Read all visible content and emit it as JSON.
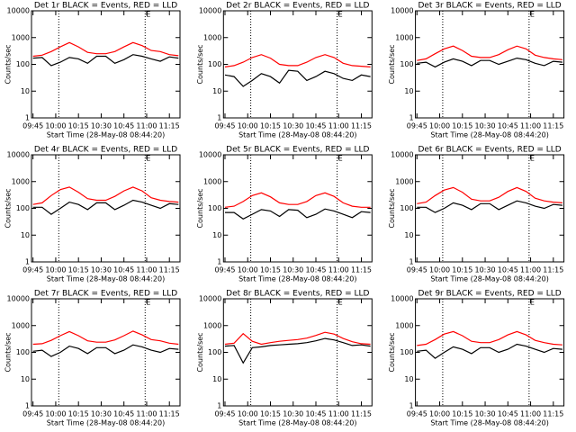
{
  "chart_data": [
    {
      "type": "line",
      "title": "Det 1r BLACK = Events, RED = LLD",
      "xlabel": "Start Time (28-May-08 08:44:20)",
      "ylabel": "Counts/sec",
      "x": [
        "09:45",
        "09:51",
        "09:57",
        "10:03",
        "10:09",
        "10:15",
        "10:21",
        "10:27",
        "10:33",
        "10:39",
        "10:45",
        "10:51",
        "10:57",
        "11:03",
        "11:09",
        "11:15",
        "11:21"
      ],
      "xlim": [
        "09:44",
        "11:22"
      ],
      "xticks": [
        "09:45",
        "10:00",
        "10:15",
        "10:30",
        "10:45",
        "11:00",
        "11:15"
      ],
      "ylim": [
        1,
        10000
      ],
      "yticks": [
        1,
        10,
        100,
        1000,
        10000
      ],
      "log_y": true,
      "vlines": [
        "10:02",
        "10:59"
      ],
      "annotations": [
        {
          "x": "10:59",
          "text": "E"
        }
      ],
      "series": [
        {
          "name": "Events",
          "color": "#000000",
          "values": [
            170,
            180,
            90,
            120,
            180,
            160,
            110,
            200,
            200,
            110,
            150,
            230,
            200,
            160,
            130,
            190,
            170
          ]
        },
        {
          "name": "LLD",
          "color": "#ff0000",
          "values": [
            200,
            220,
            300,
            450,
            650,
            450,
            280,
            250,
            250,
            300,
            450,
            650,
            500,
            330,
            300,
            230,
            210
          ]
        }
      ]
    },
    {
      "type": "line",
      "title": "Det 2r BLACK = Events, RED = LLD",
      "xlabel": "Start Time (28-May-08 08:44:20)",
      "ylabel": "Counts/sec",
      "x": [
        "09:45",
        "09:51",
        "09:57",
        "10:03",
        "10:09",
        "10:15",
        "10:21",
        "10:27",
        "10:33",
        "10:39",
        "10:45",
        "10:51",
        "10:57",
        "11:03",
        "11:09",
        "11:15",
        "11:21"
      ],
      "xlim": [
        "09:44",
        "11:22"
      ],
      "xticks": [
        "09:45",
        "10:00",
        "10:15",
        "10:30",
        "10:45",
        "11:00",
        "11:15"
      ],
      "ylim": [
        1,
        10000
      ],
      "yticks": [
        1,
        10,
        100,
        1000,
        10000
      ],
      "log_y": true,
      "vlines": [
        "10:02",
        "10:59"
      ],
      "annotations": [
        {
          "x": "10:59",
          "text": "E"
        }
      ],
      "series": [
        {
          "name": "Events",
          "color": "#000000",
          "values": [
            40,
            35,
            15,
            25,
            45,
            35,
            20,
            60,
            55,
            25,
            35,
            55,
            45,
            30,
            25,
            40,
            35
          ]
        },
        {
          "name": "LLD",
          "color": "#ff0000",
          "values": [
            80,
            90,
            120,
            180,
            230,
            170,
            100,
            90,
            90,
            120,
            180,
            230,
            180,
            110,
            90,
            85,
            80
          ]
        }
      ]
    },
    {
      "type": "line",
      "title": "Det 3r BLACK = Events, RED = LLD",
      "xlabel": "Start Time (28-May-08 08:44:20)",
      "ylabel": "Counts/sec",
      "x": [
        "09:45",
        "09:51",
        "09:57",
        "10:03",
        "10:09",
        "10:15",
        "10:21",
        "10:27",
        "10:33",
        "10:39",
        "10:45",
        "10:51",
        "10:57",
        "11:03",
        "11:09",
        "11:15",
        "11:21"
      ],
      "xlim": [
        "09:44",
        "11:22"
      ],
      "xticks": [
        "09:45",
        "10:00",
        "10:15",
        "10:30",
        "10:45",
        "11:00",
        "11:15"
      ],
      "ylim": [
        1,
        10000
      ],
      "yticks": [
        1,
        10,
        100,
        1000,
        10000
      ],
      "log_y": true,
      "vlines": [
        "10:02",
        "10:59"
      ],
      "annotations": [
        {
          "x": "10:59",
          "text": "E"
        }
      ],
      "series": [
        {
          "name": "Events",
          "color": "#000000",
          "values": [
            110,
            120,
            80,
            120,
            160,
            130,
            90,
            140,
            140,
            100,
            130,
            170,
            150,
            110,
            90,
            130,
            120
          ]
        },
        {
          "name": "LLD",
          "color": "#ff0000",
          "values": [
            140,
            160,
            250,
            380,
            480,
            330,
            200,
            180,
            180,
            230,
            350,
            480,
            380,
            220,
            180,
            160,
            150
          ]
        }
      ]
    },
    {
      "type": "line",
      "title": "Det 4r BLACK = Events, RED = LLD",
      "xlabel": "Start Time (28-May-08 08:44:20)",
      "ylabel": "Counts/sec",
      "x": [
        "09:45",
        "09:51",
        "09:57",
        "10:03",
        "10:09",
        "10:15",
        "10:21",
        "10:27",
        "10:33",
        "10:39",
        "10:45",
        "10:51",
        "10:57",
        "11:03",
        "11:09",
        "11:15",
        "11:21"
      ],
      "xlim": [
        "09:44",
        "11:22"
      ],
      "xticks": [
        "09:45",
        "10:00",
        "10:15",
        "10:30",
        "10:45",
        "11:00",
        "11:15"
      ],
      "ylim": [
        1,
        10000
      ],
      "yticks": [
        1,
        10,
        100,
        1000,
        10000
      ],
      "log_y": true,
      "vlines": [
        "10:02",
        "10:59"
      ],
      "annotations": [
        {
          "x": "10:59",
          "text": "E"
        }
      ],
      "series": [
        {
          "name": "Events",
          "color": "#000000",
          "values": [
            110,
            110,
            60,
            100,
            170,
            140,
            90,
            160,
            160,
            90,
            130,
            200,
            170,
            130,
            100,
            150,
            140
          ]
        },
        {
          "name": "LLD",
          "color": "#ff0000",
          "values": [
            140,
            160,
            300,
            500,
            620,
            400,
            230,
            200,
            200,
            280,
            450,
            620,
            450,
            250,
            200,
            180,
            170
          ]
        }
      ]
    },
    {
      "type": "line",
      "title": "Det 5r BLACK = Events, RED = LLD",
      "xlabel": "Start Time (28-May-08 08:44:20)",
      "ylabel": "Counts/sec",
      "x": [
        "09:45",
        "09:51",
        "09:57",
        "10:03",
        "10:09",
        "10:15",
        "10:21",
        "10:27",
        "10:33",
        "10:39",
        "10:45",
        "10:51",
        "10:57",
        "11:03",
        "11:09",
        "11:15",
        "11:21"
      ],
      "xlim": [
        "09:44",
        "11:22"
      ],
      "xticks": [
        "09:45",
        "10:00",
        "10:15",
        "10:30",
        "10:45",
        "11:00",
        "11:15"
      ],
      "ylim": [
        1,
        10000
      ],
      "yticks": [
        1,
        10,
        100,
        1000,
        10000
      ],
      "log_y": true,
      "vlines": [
        "10:02",
        "10:59"
      ],
      "annotations": [
        {
          "x": "10:59",
          "text": "E"
        }
      ],
      "series": [
        {
          "name": "Events",
          "color": "#000000",
          "values": [
            70,
            70,
            40,
            60,
            90,
            80,
            50,
            90,
            85,
            45,
            60,
            95,
            80,
            60,
            45,
            75,
            70
          ]
        },
        {
          "name": "LLD",
          "color": "#ff0000",
          "values": [
            110,
            120,
            180,
            300,
            380,
            270,
            160,
            140,
            140,
            180,
            300,
            380,
            280,
            160,
            120,
            110,
            110
          ]
        }
      ]
    },
    {
      "type": "line",
      "title": "Det 6r BLACK = Events, RED = LLD",
      "xlabel": "Start Time (28-May-08 08:44:20)",
      "ylabel": "Counts/sec",
      "x": [
        "09:45",
        "09:51",
        "09:57",
        "10:03",
        "10:09",
        "10:15",
        "10:21",
        "10:27",
        "10:33",
        "10:39",
        "10:45",
        "10:51",
        "10:57",
        "11:03",
        "11:09",
        "11:15",
        "11:21"
      ],
      "xlim": [
        "09:44",
        "11:22"
      ],
      "xticks": [
        "09:45",
        "10:00",
        "10:15",
        "10:30",
        "10:45",
        "11:00",
        "11:15"
      ],
      "ylim": [
        1,
        10000
      ],
      "yticks": [
        1,
        10,
        100,
        1000,
        10000
      ],
      "log_y": true,
      "vlines": [
        "10:02",
        "10:59"
      ],
      "annotations": [
        {
          "x": "10:59",
          "text": "E"
        }
      ],
      "series": [
        {
          "name": "Events",
          "color": "#000000",
          "values": [
            110,
            110,
            70,
            100,
            160,
            130,
            90,
            150,
            150,
            90,
            130,
            190,
            160,
            120,
            100,
            140,
            130
          ]
        },
        {
          "name": "LLD",
          "color": "#ff0000",
          "values": [
            150,
            170,
            300,
            480,
            600,
            400,
            220,
            190,
            190,
            260,
            430,
            600,
            430,
            240,
            190,
            170,
            160
          ]
        }
      ]
    },
    {
      "type": "line",
      "title": "Det 7r BLACK = Events, RED = LLD",
      "xlabel": "Start Time (28-May-08 08:44:20)",
      "ylabel": "Counts/sec",
      "x": [
        "09:45",
        "09:51",
        "09:57",
        "10:03",
        "10:09",
        "10:15",
        "10:21",
        "10:27",
        "10:33",
        "10:39",
        "10:45",
        "10:51",
        "10:57",
        "11:03",
        "11:09",
        "11:15",
        "11:21"
      ],
      "xlim": [
        "09:44",
        "11:22"
      ],
      "xticks": [
        "09:45",
        "10:00",
        "10:15",
        "10:30",
        "10:45",
        "11:00",
        "11:15"
      ],
      "ylim": [
        1,
        10000
      ],
      "yticks": [
        1,
        10,
        100,
        1000,
        10000
      ],
      "log_y": true,
      "vlines": [
        "10:02",
        "10:59"
      ],
      "annotations": [
        {
          "x": "10:59",
          "text": "E"
        }
      ],
      "series": [
        {
          "name": "Events",
          "color": "#000000",
          "values": [
            110,
            120,
            70,
            100,
            170,
            140,
            90,
            150,
            150,
            90,
            120,
            190,
            160,
            120,
            100,
            140,
            130
          ]
        },
        {
          "name": "LLD",
          "color": "#ff0000",
          "values": [
            200,
            210,
            280,
            420,
            600,
            420,
            270,
            240,
            240,
            290,
            420,
            620,
            450,
            300,
            270,
            220,
            200
          ]
        }
      ]
    },
    {
      "type": "line",
      "title": "Det 8r BLACK = Events, RED = LLD",
      "xlabel": "Start Time (28-May-08 08:44:20)",
      "ylabel": "Counts/sec",
      "x": [
        "09:45",
        "09:51",
        "09:57",
        "10:03",
        "10:09",
        "10:15",
        "10:21",
        "10:27",
        "10:33",
        "10:39",
        "10:45",
        "10:51",
        "10:57",
        "11:03",
        "11:09",
        "11:15",
        "11:21"
      ],
      "xlim": [
        "09:44",
        "11:22"
      ],
      "xticks": [
        "09:45",
        "10:00",
        "10:15",
        "10:30",
        "10:45",
        "11:00",
        "11:15"
      ],
      "ylim": [
        1,
        10000
      ],
      "yticks": [
        1,
        10,
        100,
        1000,
        10000
      ],
      "log_y": true,
      "vlines": [
        "10:02",
        "10:59"
      ],
      "annotations": [
        {
          "x": "10:59",
          "text": "E"
        }
      ],
      "series": [
        {
          "name": "Events",
          "color": "#000000",
          "values": [
            170,
            180,
            40,
            150,
            160,
            180,
            190,
            200,
            210,
            230,
            270,
            330,
            290,
            230,
            180,
            190,
            170
          ]
        },
        {
          "name": "LLD",
          "color": "#ff0000",
          "values": [
            200,
            220,
            500,
            260,
            200,
            230,
            260,
            280,
            300,
            340,
            430,
            560,
            480,
            330,
            250,
            210,
            200
          ]
        }
      ]
    },
    {
      "type": "line",
      "title": "Det 9r BLACK = Events, RED = LLD",
      "xlabel": "Start Time (28-May-08 08:44:20)",
      "ylabel": "Counts/sec",
      "x": [
        "09:45",
        "09:51",
        "09:57",
        "10:03",
        "10:09",
        "10:15",
        "10:21",
        "10:27",
        "10:33",
        "10:39",
        "10:45",
        "10:51",
        "10:57",
        "11:03",
        "11:09",
        "11:15",
        "11:21"
      ],
      "xlim": [
        "09:44",
        "11:22"
      ],
      "xticks": [
        "09:45",
        "10:00",
        "10:15",
        "10:30",
        "10:45",
        "11:00",
        "11:15"
      ],
      "ylim": [
        1,
        10000
      ],
      "yticks": [
        1,
        10,
        100,
        1000,
        10000
      ],
      "log_y": true,
      "vlines": [
        "10:02",
        "10:59"
      ],
      "annotations": [
        {
          "x": "10:59",
          "text": "E"
        }
      ],
      "series": [
        {
          "name": "Events",
          "color": "#000000",
          "values": [
            110,
            120,
            60,
            100,
            160,
            130,
            90,
            150,
            150,
            100,
            130,
            200,
            170,
            130,
            100,
            140,
            130
          ]
        },
        {
          "name": "LLD",
          "color": "#ff0000",
          "values": [
            180,
            200,
            300,
            480,
            600,
            420,
            260,
            230,
            230,
            300,
            450,
            600,
            450,
            280,
            230,
            200,
            190
          ]
        }
      ]
    }
  ]
}
